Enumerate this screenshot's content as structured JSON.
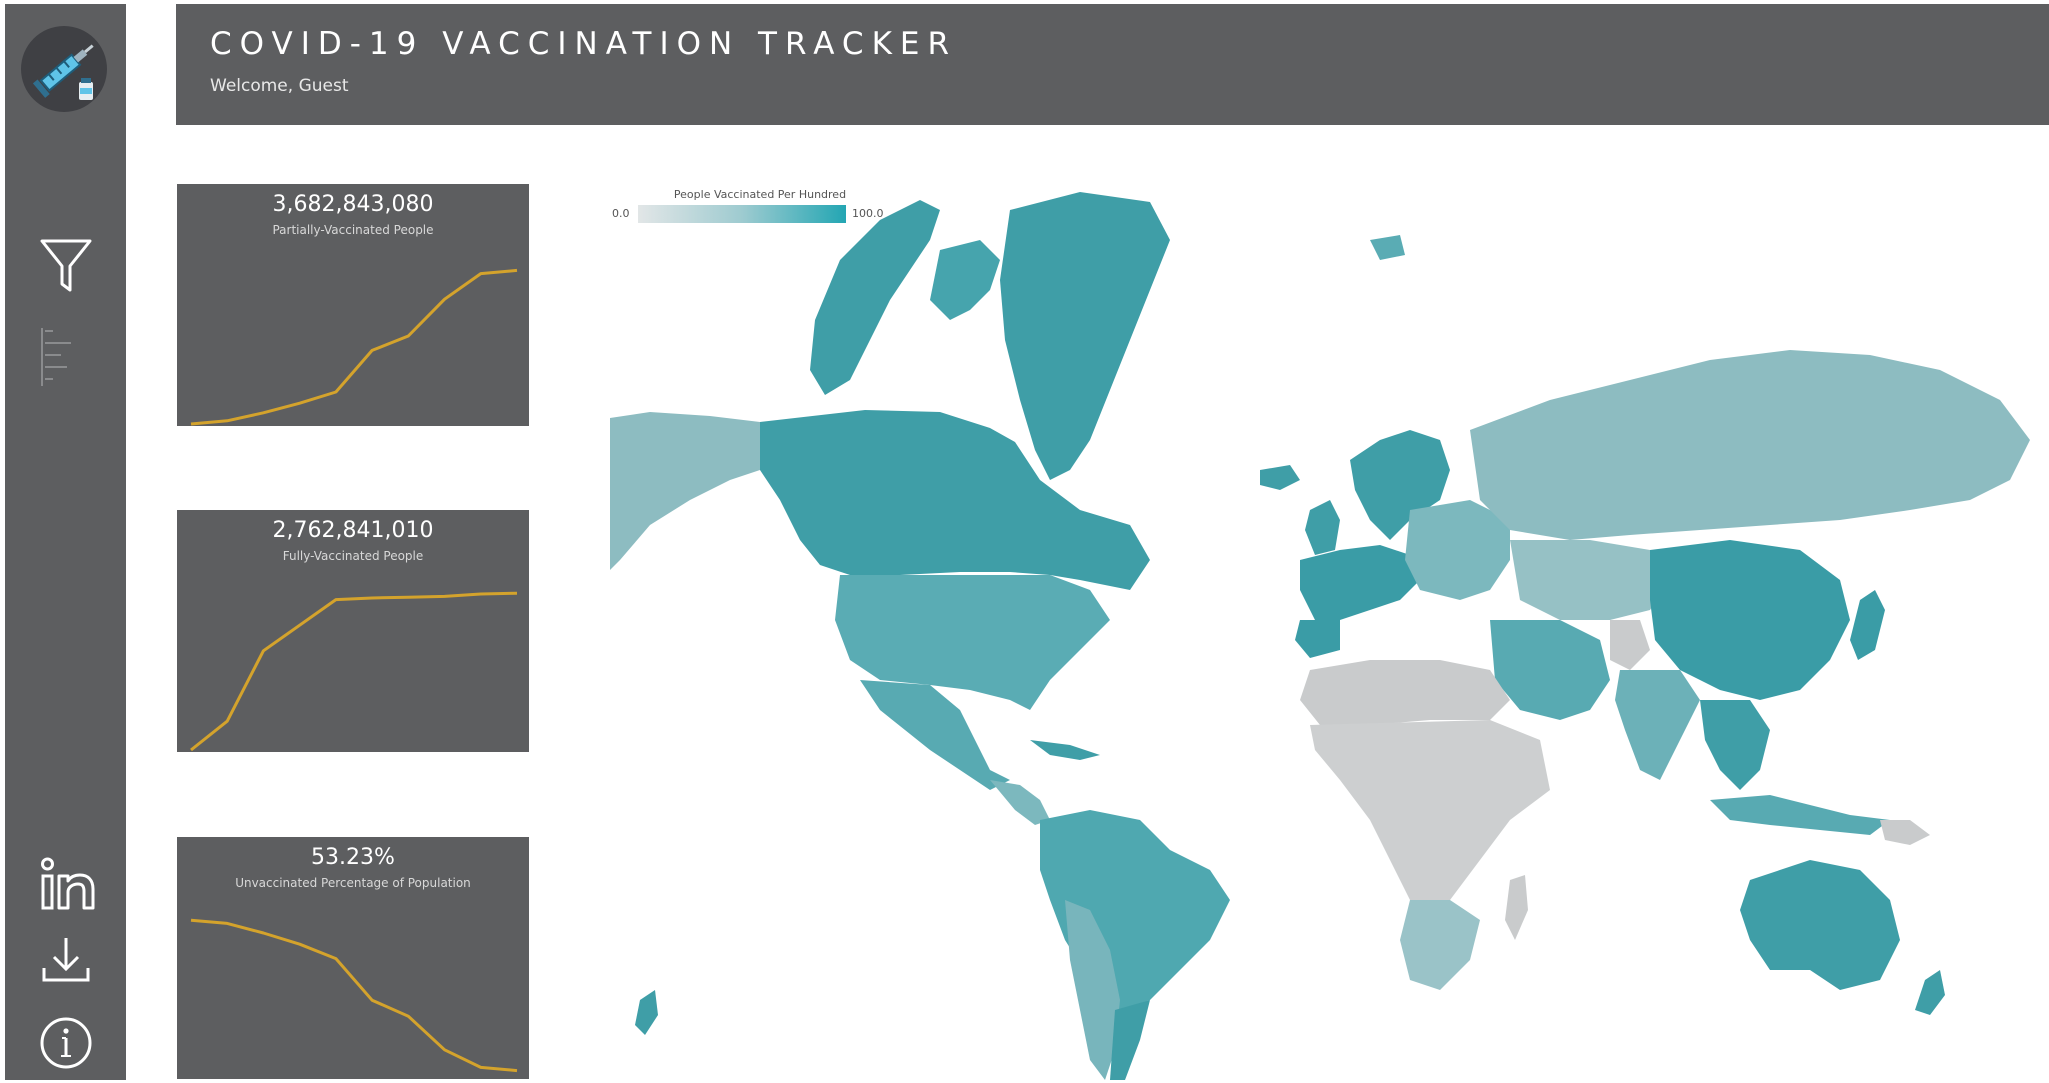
{
  "header": {
    "title": "COVID-19 VACCINATION TRACKER",
    "subtitle": "Welcome, Guest"
  },
  "sidebar": {
    "logo_icon": "vaccine-syringe-icon",
    "items": [
      {
        "icon": "filter-icon"
      },
      {
        "icon": "bar-chart-icon"
      },
      {
        "icon": "linkedin-icon"
      },
      {
        "icon": "download-icon"
      },
      {
        "icon": "info-icon"
      }
    ]
  },
  "kpis": [
    {
      "value": "3,682,843,080",
      "label": "Partially-Vaccinated People",
      "trend": [
        0.0,
        0.02,
        0.07,
        0.13,
        0.2,
        0.46,
        0.55,
        0.78,
        0.94,
        0.96
      ]
    },
    {
      "value": "2,762,841,010",
      "label": "Fully-Vaccinated People",
      "trend": [
        0.0,
        0.18,
        0.62,
        0.78,
        0.94,
        0.95,
        0.955,
        0.96,
        0.975,
        0.98
      ]
    },
    {
      "value": "53.23%",
      "label": "Unvaccinated Percentage of Population",
      "trend": [
        0.98,
        0.96,
        0.9,
        0.83,
        0.74,
        0.48,
        0.38,
        0.17,
        0.06,
        0.04
      ]
    }
  ],
  "map": {
    "legend_title": "People Vaccinated Per Hundred",
    "legend_min": "0.0",
    "legend_max": "100.0",
    "colors": {
      "low": "#d6d8d9",
      "mid": "#8dbcc1",
      "high": "#2e9ea9",
      "line": "#d4a32c"
    }
  }
}
